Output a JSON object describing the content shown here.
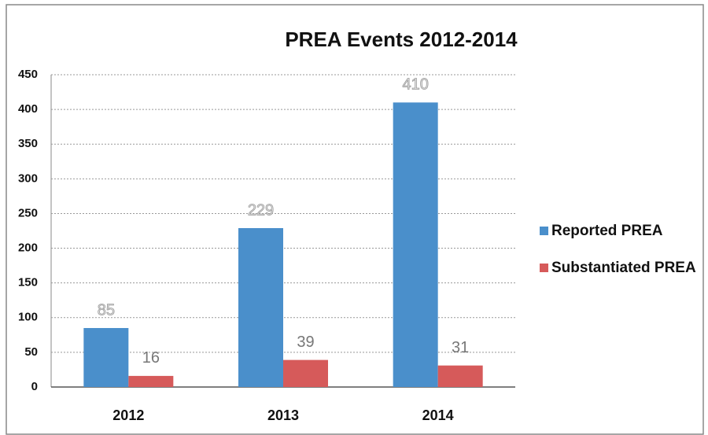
{
  "chart_data": {
    "type": "bar",
    "title": "PREA Events 2012-2014",
    "categories": [
      "2012",
      "2013",
      "2014"
    ],
    "series": [
      {
        "name": "Reported PREA",
        "color": "#4a8fcb",
        "values": [
          85,
          229,
          410
        ]
      },
      {
        "name": "Substantiated PREA",
        "color": "#d65a5a",
        "values": [
          16,
          39,
          31
        ]
      }
    ],
    "ylim": [
      0,
      450
    ],
    "yticks": [
      0,
      50,
      100,
      150,
      200,
      250,
      300,
      350,
      400,
      450
    ],
    "grid": true,
    "legend": "right"
  }
}
